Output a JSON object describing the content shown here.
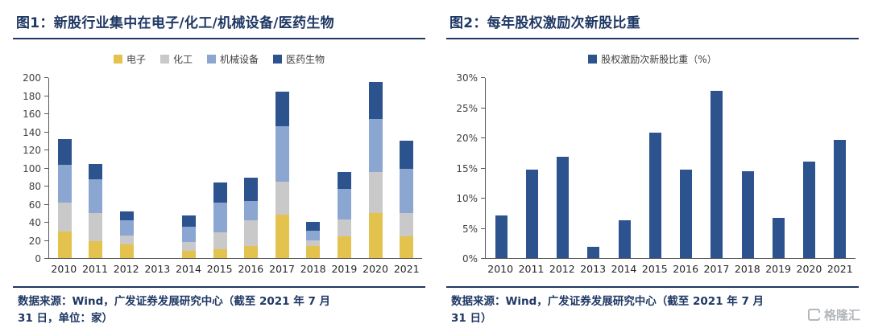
{
  "figure1": {
    "title": "图1：新股行业集中在电子/化工/机械设备/医药生物",
    "source_line1": "数据来源：Wind，广发证券发展研究中心（截至 2021 年 7 月",
    "source_line2": "31 日，单位：家）"
  },
  "figure2": {
    "title": "图2：每年股权激励次新股比重",
    "source_line1": "数据来源：Wind，广发证券发展研究中心（截至 2021 年 7 月",
    "source_line2": "31 日）"
  },
  "watermark": {
    "text": "格隆汇"
  },
  "colors": {
    "navy": "#1f3864",
    "bar_dark_blue": "#2d538e",
    "bar_light_blue": "#8ba6d0",
    "bar_gray": "#c9c9c9",
    "bar_yellow": "#e3c24d"
  },
  "chart_data": [
    {
      "type": "bar",
      "stacked": true,
      "title": "图1：新股行业集中在电子/化工/机械设备/医药生物",
      "categories": [
        "2010",
        "2011",
        "2012",
        "2013",
        "2014",
        "2015",
        "2016",
        "2017",
        "2018",
        "2019",
        "2020",
        "2021"
      ],
      "series": [
        {
          "name": "电子",
          "color": "#e3c24d",
          "values": [
            29,
            19,
            15,
            0,
            8,
            10,
            13,
            48,
            13,
            24,
            50,
            24
          ]
        },
        {
          "name": "化工",
          "color": "#c9c9c9",
          "values": [
            32,
            31,
            10,
            0,
            10,
            19,
            28,
            36,
            6,
            19,
            45,
            26
          ]
        },
        {
          "name": "机械设备",
          "color": "#8ba6d0",
          "values": [
            42,
            37,
            17,
            0,
            17,
            33,
            21,
            61,
            11,
            34,
            59,
            49
          ]
        },
        {
          "name": "医药生物",
          "color": "#2d538e",
          "values": [
            28,
            17,
            10,
            0,
            12,
            22,
            26,
            38,
            10,
            19,
            41,
            31
          ]
        }
      ],
      "totals": [
        131,
        104,
        52,
        0,
        47,
        84,
        88,
        183,
        40,
        96,
        195,
        130
      ],
      "xlabel": "",
      "ylabel": "",
      "ylim": [
        0,
        200
      ],
      "yticks": [
        0,
        20,
        40,
        60,
        80,
        100,
        120,
        140,
        160,
        180,
        200
      ],
      "yticklabels": [
        "0",
        "20",
        "40",
        "60",
        "80",
        "100",
        "120",
        "140",
        "160",
        "180",
        "200"
      ],
      "legend_position": "top",
      "grid": false
    },
    {
      "type": "bar",
      "stacked": false,
      "title": "图2：每年股权激励次新股比重",
      "categories": [
        "2010",
        "2011",
        "2012",
        "2013",
        "2014",
        "2015",
        "2016",
        "2017",
        "2018",
        "2019",
        "2020",
        "2021"
      ],
      "series": [
        {
          "name": "股权激励次新股比重（%）",
          "color": "#2d538e",
          "values": [
            7.1,
            14.7,
            16.8,
            1.9,
            6.3,
            20.8,
            14.7,
            27.7,
            14.4,
            6.6,
            16.0,
            19.6
          ]
        }
      ],
      "xlabel": "",
      "ylabel": "",
      "ylim": [
        0,
        30
      ],
      "yticks": [
        0,
        5,
        10,
        15,
        20,
        25,
        30
      ],
      "yticklabels": [
        "0%",
        "5%",
        "10%",
        "15%",
        "20%",
        "25%",
        "30%"
      ],
      "legend_position": "top",
      "grid": false
    }
  ]
}
